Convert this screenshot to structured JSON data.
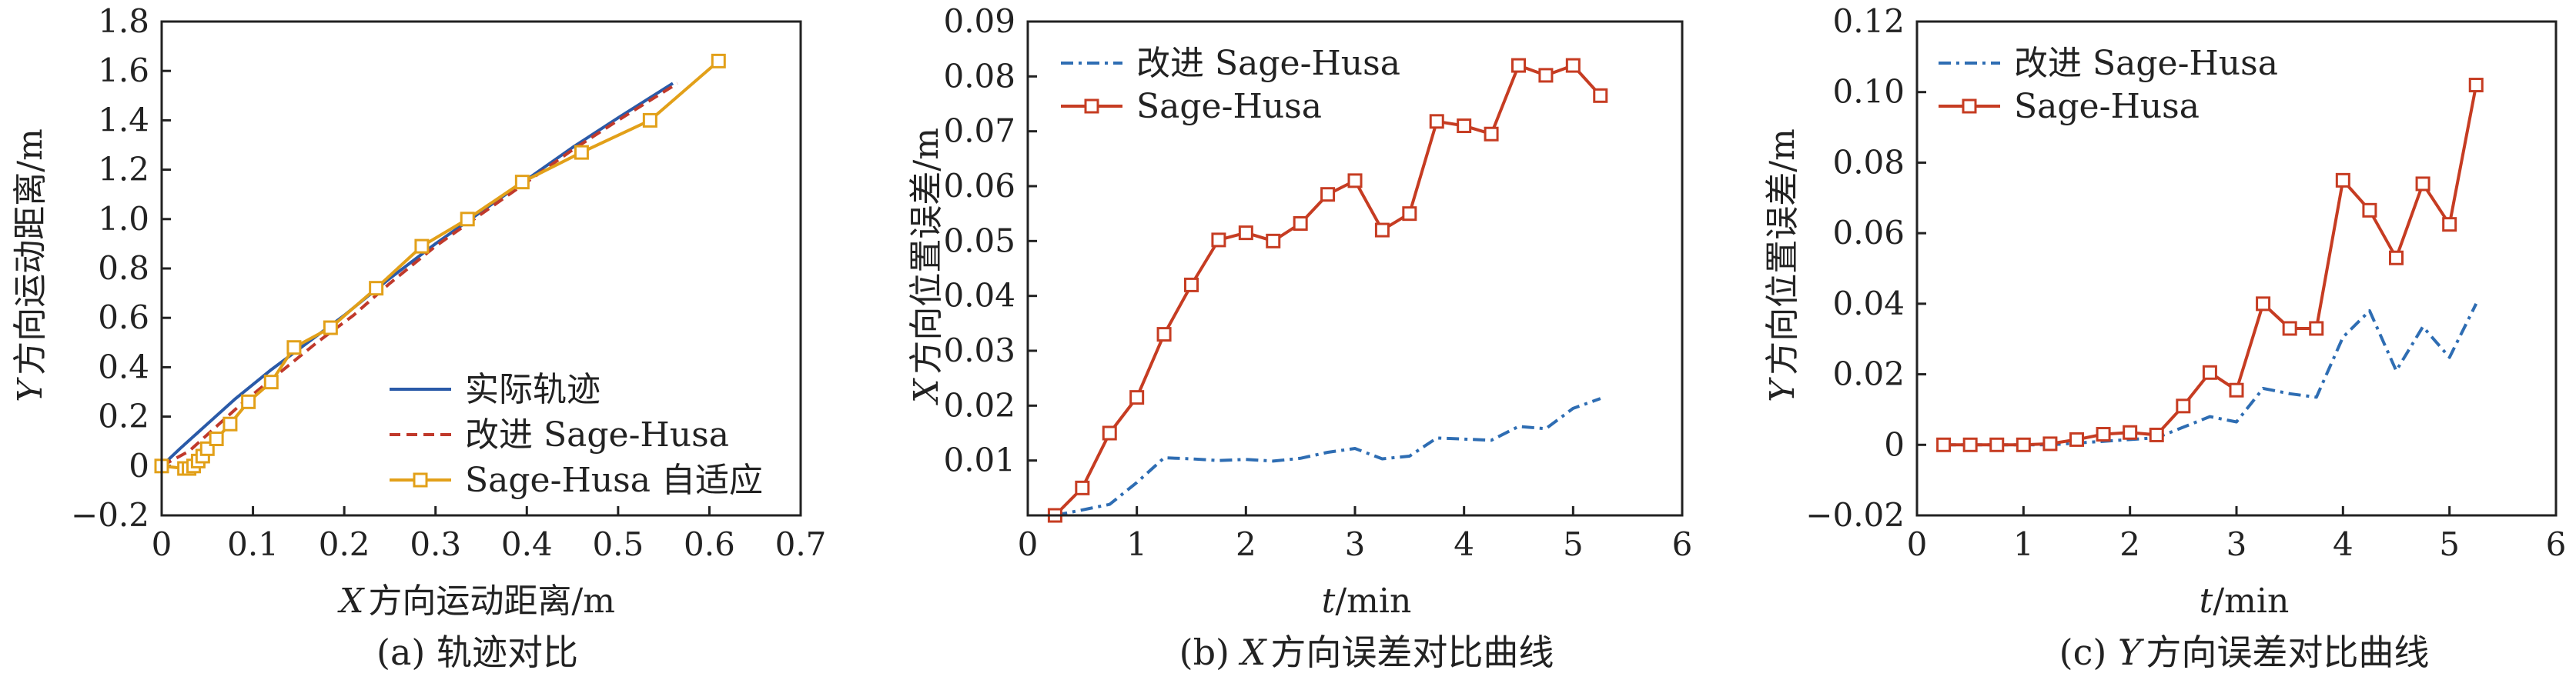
{
  "colors": {
    "actual": "#2a5aa8",
    "improved_a": "#c0392b",
    "adaptive": "#e2a019",
    "improved_bc": "#2e6db3",
    "sagehusa_bc": "#c63c22",
    "axis": "#222222"
  },
  "chart_data": [
    {
      "type": "line",
      "caption": "(a) 轨迹对比",
      "xlabel_var": "X",
      "xlabel_text": "方向运动距离/m",
      "ylabel_var": "Y",
      "ylabel_text": "方向运动距离/m",
      "xlim": [
        0,
        0.7
      ],
      "ylim": [
        -0.2,
        1.8
      ],
      "xticks": [
        0,
        0.1,
        0.2,
        0.3,
        0.4,
        0.5,
        0.6,
        0.7
      ],
      "xtick_labels": [
        "0",
        "0.1",
        "0.2",
        "0.3",
        "0.4",
        "0.5",
        "0.6",
        "0.7"
      ],
      "yticks": [
        -0.2,
        0,
        0.2,
        0.4,
        0.6,
        0.8,
        1.0,
        1.2,
        1.4,
        1.6,
        1.8
      ],
      "ytick_labels": [
        "−0.2",
        "0",
        "0.2",
        "0.4",
        "0.6",
        "0.8",
        "1.0",
        "1.2",
        "1.4",
        "1.6",
        "1.8"
      ],
      "legend_position": "bottom-right",
      "series": [
        {
          "name": "实际轨迹",
          "style": "solid",
          "marker": false,
          "x": [
            0,
            0.02,
            0.05,
            0.08,
            0.12,
            0.16,
            0.2,
            0.25,
            0.3,
            0.35,
            0.4,
            0.45,
            0.5,
            0.56
          ],
          "y": [
            0,
            0.07,
            0.17,
            0.27,
            0.39,
            0.5,
            0.61,
            0.76,
            0.9,
            1.03,
            1.16,
            1.29,
            1.41,
            1.55
          ]
        },
        {
          "name": "改进 Sage-Husa",
          "style": "dashed",
          "marker": false,
          "x": [
            0,
            0.03,
            0.06,
            0.09,
            0.13,
            0.17,
            0.21,
            0.25,
            0.3,
            0.35,
            0.4,
            0.45,
            0.5,
            0.565
          ],
          "y": [
            0,
            0.06,
            0.16,
            0.26,
            0.38,
            0.5,
            0.61,
            0.74,
            0.89,
            1.02,
            1.15,
            1.28,
            1.4,
            1.55
          ]
        },
        {
          "name": "Sage-Husa 自适应",
          "style": "solid",
          "marker": true,
          "x": [
            0,
            0.025,
            0.03,
            0.035,
            0.04,
            0.045,
            0.05,
            0.06,
            0.075,
            0.095,
            0.12,
            0.145,
            0.185,
            0.235,
            0.285,
            0.335,
            0.395,
            0.46,
            0.535,
            0.61
          ],
          "y": [
            0,
            -0.01,
            -0.01,
            0.0,
            0.02,
            0.04,
            0.07,
            0.11,
            0.17,
            0.26,
            0.34,
            0.48,
            0.56,
            0.72,
            0.89,
            1.0,
            1.15,
            1.27,
            1.4,
            1.64
          ]
        }
      ]
    },
    {
      "type": "line",
      "caption_prefix": "(b) ",
      "caption_var": "X",
      "caption_text": "方向误差对比曲线",
      "xlabel_var": "t",
      "xlabel_text": "/min",
      "ylabel_var": "X",
      "ylabel_text": "方向位置误差/m",
      "xlim": [
        0,
        6
      ],
      "ylim": [
        0,
        0.09
      ],
      "xticks": [
        0,
        1,
        2,
        3,
        4,
        5,
        6
      ],
      "xtick_labels": [
        "0",
        "1",
        "2",
        "3",
        "4",
        "5",
        "6"
      ],
      "yticks": [
        0.01,
        0.02,
        0.03,
        0.04,
        0.05,
        0.06,
        0.07,
        0.08,
        0.09
      ],
      "ytick_labels": [
        "0.01",
        "0.02",
        "0.03",
        "0.04",
        "0.05",
        "0.06",
        "0.07",
        "0.08",
        "0.09"
      ],
      "legend_position": "top-left",
      "series": [
        {
          "name": "改进 Sage-Husa",
          "style": "dashdot",
          "marker": false,
          "x": [
            0.25,
            0.5,
            0.75,
            1.0,
            1.25,
            1.5,
            1.75,
            2.0,
            2.25,
            2.5,
            2.75,
            3.0,
            3.25,
            3.5,
            3.75,
            4.0,
            4.25,
            4.5,
            4.75,
            5.0,
            5.25
          ],
          "y": [
            0.0,
            0.001,
            0.002,
            0.006,
            0.0105,
            0.0103,
            0.01,
            0.0102,
            0.0099,
            0.0104,
            0.0115,
            0.0122,
            0.0103,
            0.0108,
            0.0141,
            0.0139,
            0.0137,
            0.0162,
            0.0158,
            0.0195,
            0.0213
          ]
        },
        {
          "name": "Sage-Husa",
          "style": "solid",
          "marker": true,
          "x": [
            0.25,
            0.5,
            0.75,
            1.0,
            1.25,
            1.5,
            1.75,
            2.0,
            2.25,
            2.5,
            2.75,
            3.0,
            3.25,
            3.5,
            3.75,
            4.0,
            4.25,
            4.5,
            4.75,
            5.0,
            5.25
          ],
          "y": [
            0.0,
            0.005,
            0.015,
            0.0215,
            0.033,
            0.042,
            0.0502,
            0.0515,
            0.05,
            0.0532,
            0.0585,
            0.061,
            0.052,
            0.055,
            0.0718,
            0.071,
            0.0695,
            0.082,
            0.0802,
            0.082,
            0.0765
          ]
        }
      ]
    },
    {
      "type": "line",
      "caption_prefix": "(c) ",
      "caption_var": "Y",
      "caption_text": "方向误差对比曲线",
      "xlabel_var": "t",
      "xlabel_text": "/min",
      "ylabel_var": "Y",
      "ylabel_text": "方向位置误差/m",
      "xlim": [
        0,
        6
      ],
      "ylim": [
        -0.02,
        0.12
      ],
      "xticks": [
        0,
        1,
        2,
        3,
        4,
        5,
        6
      ],
      "xtick_labels": [
        "0",
        "1",
        "2",
        "3",
        "4",
        "5",
        "6"
      ],
      "yticks": [
        -0.02,
        0,
        0.02,
        0.04,
        0.06,
        0.08,
        0.1,
        0.12
      ],
      "ytick_labels": [
        "−0.02",
        "0",
        "0.02",
        "0.04",
        "0.06",
        "0.08",
        "0.10",
        "0.12"
      ],
      "legend_position": "top-left",
      "series": [
        {
          "name": "改进 Sage-Husa",
          "style": "dashdot",
          "marker": false,
          "x": [
            0.25,
            0.5,
            0.75,
            1.0,
            1.25,
            1.5,
            1.75,
            2.0,
            2.25,
            2.5,
            2.75,
            3.0,
            3.25,
            3.5,
            3.75,
            4.0,
            4.25,
            4.5,
            4.75,
            5.0,
            5.25
          ],
          "y": [
            0.0,
            0.0,
            0.0,
            0.0,
            0.0,
            0.0005,
            0.001,
            0.0015,
            0.002,
            0.005,
            0.008,
            0.0065,
            0.016,
            0.0145,
            0.0135,
            0.0305,
            0.038,
            0.021,
            0.0335,
            0.0248,
            0.04
          ]
        },
        {
          "name": "Sage-Husa",
          "style": "solid",
          "marker": true,
          "x": [
            0.25,
            0.5,
            0.75,
            1.0,
            1.25,
            1.5,
            1.75,
            2.0,
            2.25,
            2.5,
            2.75,
            3.0,
            3.25,
            3.5,
            3.75,
            4.0,
            4.25,
            4.5,
            4.75,
            5.0,
            5.25
          ],
          "y": [
            0.0,
            0.0,
            0.0,
            0.0,
            0.0003,
            0.0015,
            0.003,
            0.0035,
            0.0028,
            0.011,
            0.0205,
            0.0155,
            0.04,
            0.033,
            0.033,
            0.075,
            0.0665,
            0.053,
            0.074,
            0.0625,
            0.102
          ]
        }
      ]
    }
  ]
}
